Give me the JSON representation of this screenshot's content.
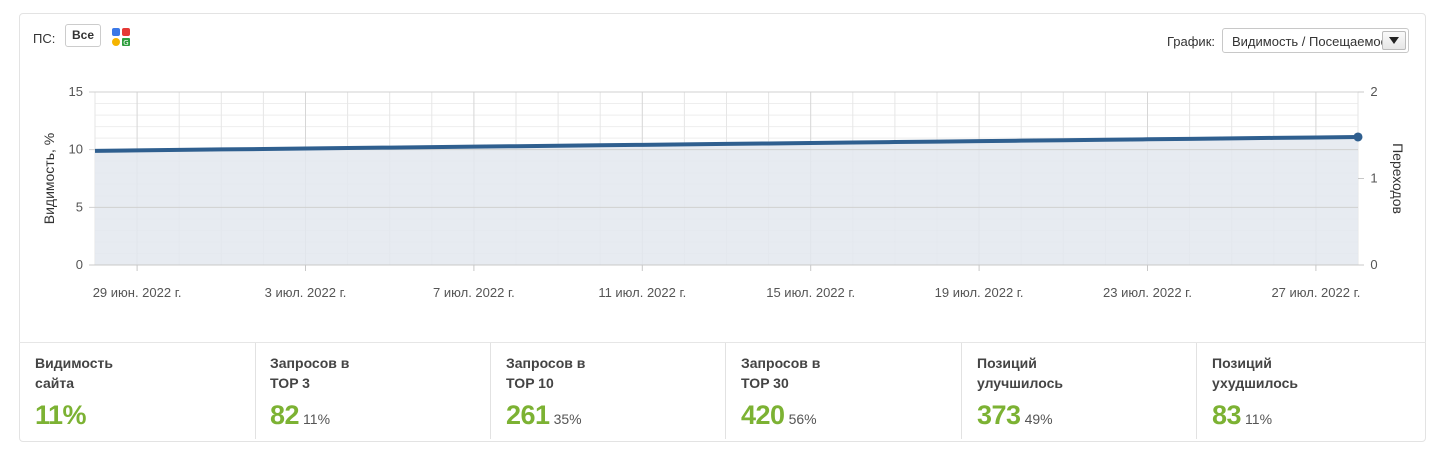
{
  "header": {
    "ps_label": "ПС:",
    "ps_button": "Все",
    "engine_icon": "search-engines-icon",
    "graph_label": "График:",
    "graph_select_value": "Видимость / Посещаемость"
  },
  "chart_data": {
    "type": "area",
    "x": [
      "2022-06-28",
      "2022-06-29",
      "2022-06-30",
      "2022-07-01",
      "2022-07-02",
      "2022-07-03",
      "2022-07-04",
      "2022-07-05",
      "2022-07-06",
      "2022-07-07",
      "2022-07-08",
      "2022-07-09",
      "2022-07-10",
      "2022-07-11",
      "2022-07-12",
      "2022-07-13",
      "2022-07-14",
      "2022-07-15",
      "2022-07-16",
      "2022-07-17",
      "2022-07-18",
      "2022-07-19",
      "2022-07-20",
      "2022-07-21",
      "2022-07-22",
      "2022-07-23",
      "2022-07-24",
      "2022-07-25",
      "2022-07-26",
      "2022-07-27",
      "2022-07-28"
    ],
    "x_tick_labels": [
      "29 июн. 2022 г.",
      "3 июл. 2022 г.",
      "7 июл. 2022 г.",
      "11 июл. 2022 г.",
      "15 июл. 2022 г.",
      "19 июл. 2022 г.",
      "23 июл. 2022 г.",
      "27 июл. 2022 г."
    ],
    "series": [
      {
        "name": "Видимость, %",
        "color": "#2f5f8f",
        "values": [
          9.9,
          9.94,
          9.98,
          10.02,
          10.06,
          10.1,
          10.14,
          10.18,
          10.22,
          10.26,
          10.3,
          10.34,
          10.38,
          10.42,
          10.46,
          10.5,
          10.54,
          10.58,
          10.62,
          10.66,
          10.7,
          10.74,
          10.78,
          10.82,
          10.86,
          10.9,
          10.94,
          10.98,
          11.02,
          11.06,
          11.1
        ]
      }
    ],
    "ylabel": "Видимость, %",
    "ylim": [
      0,
      15
    ],
    "yticks": [
      "0",
      "5",
      "10",
      "15"
    ],
    "y2label": "Переходов",
    "y2lim": [
      0,
      2
    ],
    "y2ticks": [
      "0",
      "1",
      "2"
    ],
    "grid": true,
    "fill_color": "#e3e8ee"
  },
  "stats": [
    {
      "title": "Видимость\nсайта",
      "value": "11%",
      "pct": ""
    },
    {
      "title": "Запросов в\nTOP 3",
      "value": "82",
      "pct": "11%"
    },
    {
      "title": "Запросов в\nTOP 10",
      "value": "261",
      "pct": "35%"
    },
    {
      "title": "Запросов в\nTOP 30",
      "value": "420",
      "pct": "56%"
    },
    {
      "title": "Позиций\nулучшилось",
      "value": "373",
      "pct": "49%"
    },
    {
      "title": "Позиций\nухудшилось",
      "value": "83",
      "pct": "11%"
    }
  ]
}
